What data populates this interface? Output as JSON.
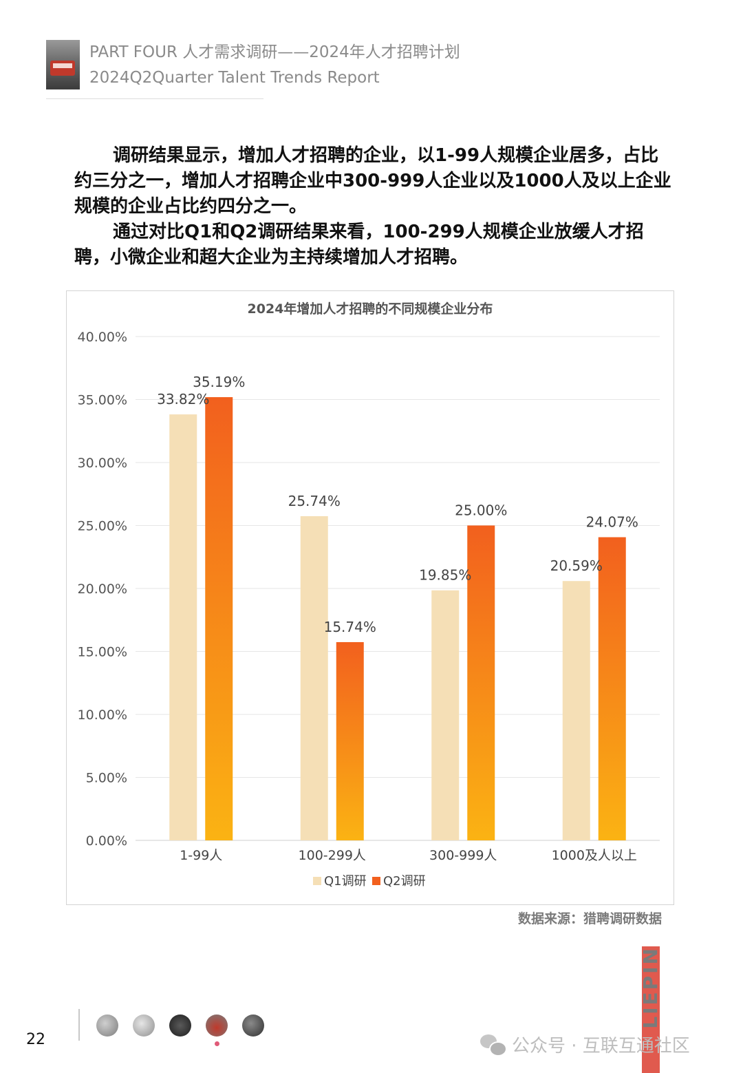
{
  "header": {
    "line1": "PART FOUR 人才需求调研——2024年人才招聘计划",
    "line2": "2024Q2Quarter Talent Trends Report"
  },
  "paragraphs": [
    "调研结果显示，增加人才招聘的企业，以1-99人规模企业居多，占比约三分之一，增加人才招聘企业中300-999人企业以及1000人及以上企业规模的企业占比约四分之一。",
    "通过对比Q1和Q2调研结果来看，100-299人规模企业放缓人才招聘，小微企业和超大企业为主持续增加人才招聘。"
  ],
  "chart_data": {
    "type": "bar",
    "title": "2024年增加人才招聘的不同规模企业分布",
    "categories": [
      "1-99人",
      "100-299人",
      "300-999人",
      "1000及人以上"
    ],
    "series": [
      {
        "name": "Q1调研",
        "values": [
          33.82,
          25.74,
          19.85,
          20.59
        ],
        "labels": [
          "33.82%",
          "25.74%",
          "19.85%",
          "20.59%"
        ],
        "color": "#f5dfb6"
      },
      {
        "name": "Q2调研",
        "values": [
          35.19,
          15.74,
          25.0,
          24.07
        ],
        "labels": [
          "35.19%",
          "15.74%",
          "25.00%",
          "24.07%"
        ],
        "color": "#f2601e",
        "color_bottom": "#fbb313"
      }
    ],
    "ylim": [
      0,
      40
    ],
    "yticks": [
      0,
      5,
      10,
      15,
      20,
      25,
      30,
      35,
      40
    ],
    "ytick_labels": [
      "0.00%",
      "5.00%",
      "10.00%",
      "15.00%",
      "20.00%",
      "25.00%",
      "30.00%",
      "35.00%",
      "40.00%"
    ],
    "xlabel": "",
    "ylabel": "",
    "grid": true,
    "legend": "bottom"
  },
  "source": "数据来源：猎聘调研数据",
  "brand": "LIEPIN",
  "page_number": "22",
  "watermark": "公众号 · 互联互通社区"
}
